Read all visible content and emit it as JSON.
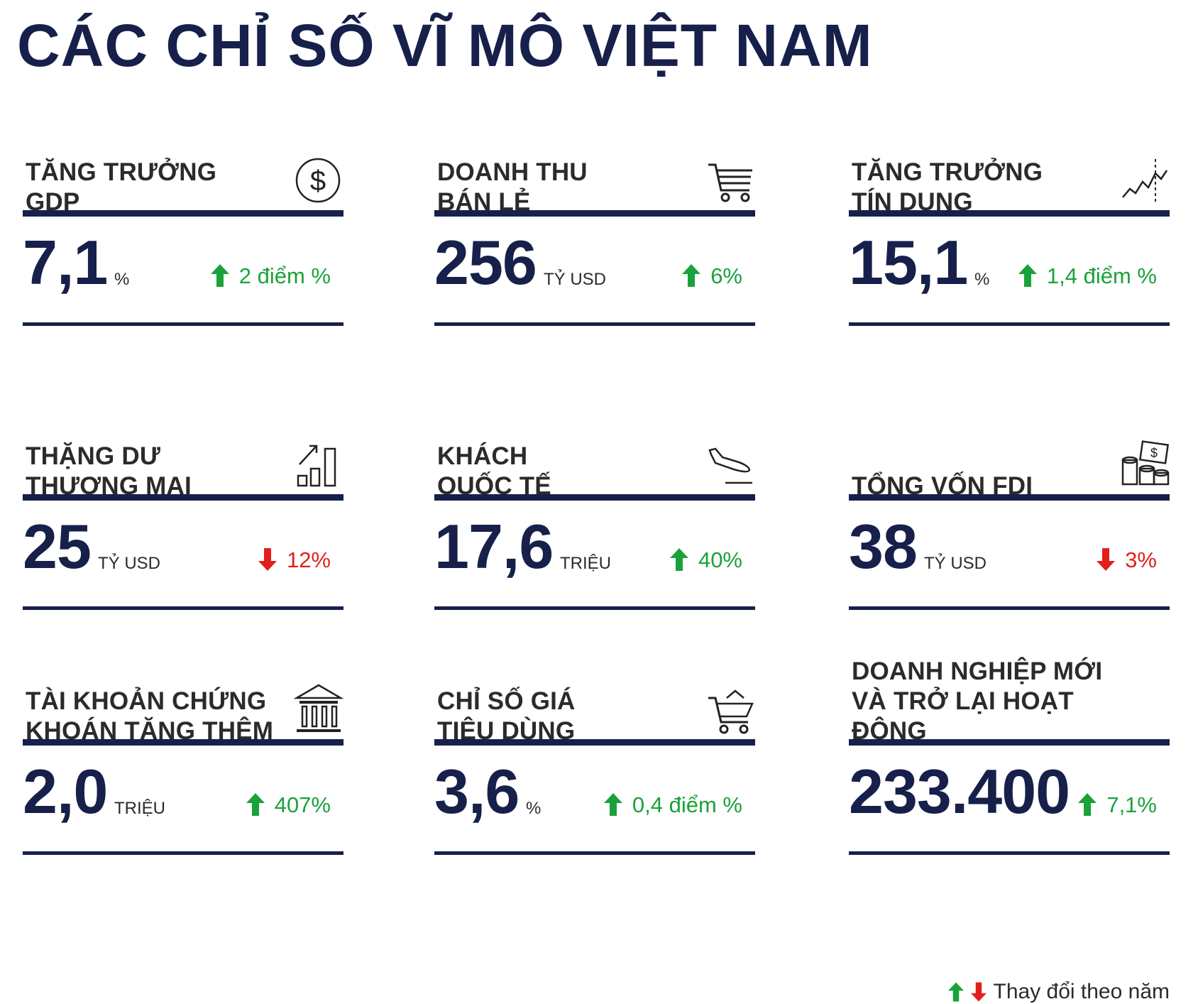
{
  "title": "CÁC CHỈ SỐ VĨ MÔ VIỆT NAM",
  "colors": {
    "navy": "#16204a",
    "up": "#1aa23a",
    "down": "#e0201c"
  },
  "cards": [
    {
      "label": "TĂNG TRƯỞNG\nGDP",
      "icon": "dollar-coin-icon",
      "value": "7,1",
      "unit": "%",
      "change": "2 điểm %",
      "direction": "up"
    },
    {
      "label": "DOANH THU\nBÁN LẺ",
      "icon": "shopping-cart-icon",
      "value": "256",
      "unit": "TỶ USD",
      "change": "6%",
      "direction": "up"
    },
    {
      "label": "TĂNG TRƯỞNG\nTÍN DỤNG",
      "icon": "growth-line-icon",
      "value": "15,1",
      "unit": "%",
      "change": "1,4 điểm %",
      "direction": "up"
    },
    {
      "label": "THẶNG DƯ\nTHƯƠNG MẠI",
      "icon": "bar-growth-icon",
      "value": "25",
      "unit": "TỶ USD",
      "change": "12%",
      "direction": "down"
    },
    {
      "label": "KHÁCH\nQUỐC TẾ",
      "icon": "airplane-landing-icon",
      "value": "17,6",
      "unit": "TRIỆU",
      "change": "40%",
      "direction": "up"
    },
    {
      "label": "TỔNG VỐN FDI",
      "icon": "money-stack-icon",
      "value": "38",
      "unit": "TỶ USD",
      "change": "3%",
      "direction": "down"
    },
    {
      "label": "TÀI KHOẢN CHỨNG\nKHOÁN TĂNG THÊM",
      "icon": "bank-building-icon",
      "value": "2,0",
      "unit": "TRIỆU",
      "change": "407%",
      "direction": "up"
    },
    {
      "label": "CHỈ SỐ GIÁ\nTIÊU DÙNG",
      "icon": "basket-cart-icon",
      "value": "3,6",
      "unit": "%",
      "change": "0,4 điểm %",
      "direction": "up"
    },
    {
      "label": "DOANH NGHIỆP MỚI\nVÀ TRỞ LẠI HOẠT ĐỘNG",
      "icon": "none",
      "value": "233.400",
      "unit": "",
      "change": "7,1%",
      "direction": "up"
    }
  ],
  "legend": {
    "text": "Thay đổi theo năm"
  }
}
